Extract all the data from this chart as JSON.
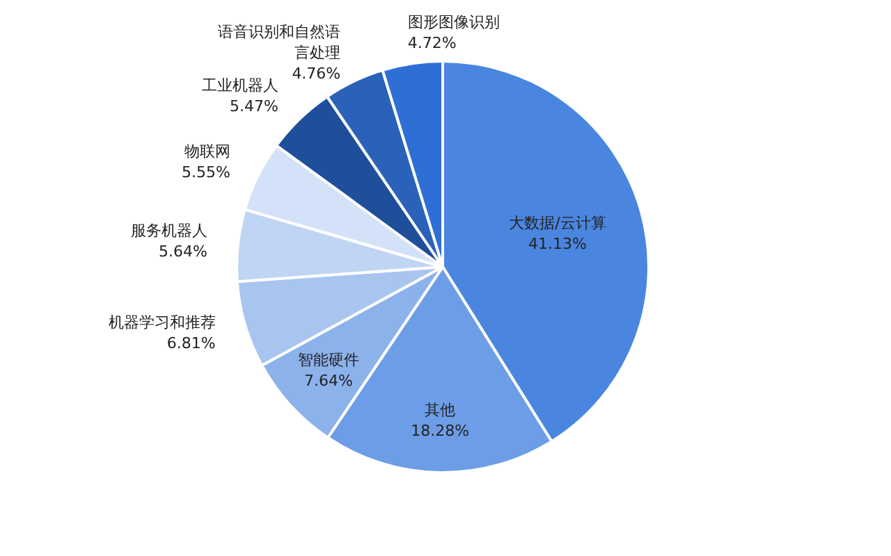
{
  "chart_data": {
    "type": "pie",
    "categories": [
      "大数据/云计算",
      "其他",
      "智能硬件",
      "机器学习和推荐",
      "服务机器人",
      "物联网",
      "工业机器人",
      "语音识别和自然语言处理",
      "图形图像识别"
    ],
    "values": [
      41.13,
      18.28,
      7.64,
      6.81,
      5.64,
      5.55,
      5.47,
      4.76,
      4.72
    ],
    "colors": [
      "#4a86e0",
      "#6d9de6",
      "#8cb2ec",
      "#a8c5f0",
      "#c0d5f4",
      "#d3e2f8",
      "#1f4f9a",
      "#2a62b9",
      "#2e6fd6"
    ],
    "value_labels": [
      "41.13%",
      "18.28%",
      "7.64%",
      "6.81%",
      "5.64%",
      "5.55%",
      "5.47%",
      "4.76%",
      "4.72%"
    ]
  }
}
